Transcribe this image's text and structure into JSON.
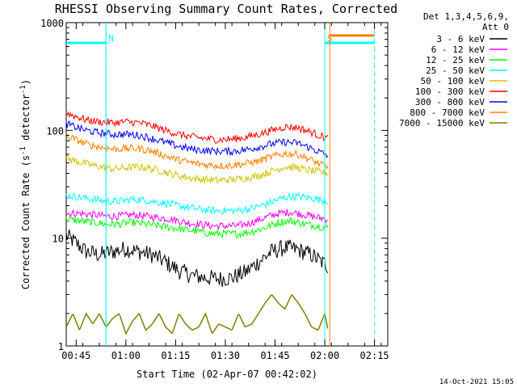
{
  "chart_data": {
    "type": "line",
    "title": "RHESSI Observing Summary Count Rates, Corrected",
    "xlabel": "Start Time (02-Apr-07 00:42:02)",
    "ylabel": "Corrected Count Rate (s-1 detector-1)",
    "ylabel_parts": {
      "main": "Corrected Count Rate (s",
      "sup1": "-1",
      "mid": " detector",
      "sup2": "-1",
      "end": ")"
    },
    "y_scale": "log",
    "ylim": [
      1,
      1000
    ],
    "xlim_minutes": [
      0,
      97
    ],
    "x_ticks": [
      {
        "label": "00:45",
        "minute": 3
      },
      {
        "label": "01:00",
        "minute": 18
      },
      {
        "label": "01:15",
        "minute": 33
      },
      {
        "label": "01:30",
        "minute": 48
      },
      {
        "label": "01:45",
        "minute": 63
      },
      {
        "label": "02:00",
        "minute": 78
      },
      {
        "label": "02:15",
        "minute": 93
      }
    ],
    "y_ticks": [
      {
        "label": "1",
        "value": 1
      },
      {
        "label": "10",
        "value": 10
      },
      {
        "label": "100",
        "value": 100
      },
      {
        "label": "1000",
        "value": 1000
      }
    ],
    "legend_header": [
      "Det 1,3,4,5,6,9,",
      "Att 0"
    ],
    "series": [
      {
        "name": "3 - 6 keV",
        "color": "#000000",
        "x": [
          0,
          3,
          6,
          10,
          14,
          18,
          22,
          26,
          30,
          34,
          38,
          42,
          46,
          50,
          54,
          58,
          62,
          66,
          70,
          74,
          77,
          79
        ],
        "values": [
          10.5,
          9.0,
          7.5,
          7.0,
          7.5,
          8.0,
          7.5,
          7.0,
          6.0,
          5.0,
          4.5,
          4.3,
          4.2,
          4.3,
          4.8,
          6.0,
          7.5,
          8.2,
          7.8,
          7.0,
          6.0,
          5.5
        ]
      },
      {
        "name": "6 - 12 keV",
        "color": "#ff00ff",
        "x": [
          0,
          4,
          8,
          12,
          16,
          20,
          24,
          28,
          32,
          36,
          40,
          44,
          48,
          52,
          56,
          60,
          64,
          68,
          72,
          76,
          79
        ],
        "values": [
          17,
          17,
          16.5,
          16,
          16,
          16.5,
          16,
          15.5,
          15,
          14,
          13.5,
          13,
          13,
          13,
          14,
          15.5,
          17,
          17.5,
          16.5,
          15.5,
          15
        ]
      },
      {
        "name": "12 - 25 keV",
        "color": "#00ff00",
        "x": [
          0,
          4,
          8,
          12,
          16,
          20,
          24,
          28,
          32,
          36,
          40,
          44,
          48,
          52,
          56,
          60,
          64,
          68,
          72,
          76,
          79
        ],
        "values": [
          15,
          14.5,
          14,
          13.5,
          13.5,
          14,
          13.5,
          13,
          12.5,
          12,
          11.5,
          11,
          11,
          11,
          11.5,
          12.5,
          14,
          14.5,
          13.5,
          13,
          12.5
        ]
      },
      {
        "name": "25 - 50 keV",
        "color": "#00ffff",
        "x": [
          0,
          4,
          8,
          12,
          16,
          20,
          24,
          28,
          32,
          36,
          40,
          44,
          48,
          52,
          56,
          60,
          64,
          68,
          72,
          76,
          79
        ],
        "values": [
          25,
          24,
          23,
          22,
          22,
          23,
          22.5,
          21.5,
          20.5,
          19.5,
          18.5,
          18,
          18,
          18,
          19,
          20.5,
          23,
          24.5,
          24,
          23,
          22
        ]
      },
      {
        "name": "50 - 100 keV",
        "color": "#d0c000",
        "x": [
          0,
          3,
          6,
          10,
          14,
          18,
          22,
          26,
          30,
          34,
          38,
          42,
          46,
          50,
          54,
          58,
          62,
          66,
          70,
          74,
          77,
          79
        ],
        "values": [
          55,
          52,
          49,
          46,
          44,
          45,
          46,
          44,
          41,
          38,
          36,
          35,
          34.5,
          35,
          36,
          38,
          42,
          46,
          45,
          42,
          41,
          40
        ]
      },
      {
        "name": "100 - 300 keV",
        "color": "#ff0000",
        "x": [
          0,
          3,
          6,
          10,
          14,
          18,
          22,
          26,
          30,
          34,
          38,
          42,
          46,
          50,
          54,
          58,
          62,
          66,
          70,
          74,
          77,
          79
        ],
        "values": [
          145,
          135,
          125,
          120,
          118,
          120,
          118,
          110,
          100,
          92,
          87,
          84,
          82,
          83,
          86,
          92,
          100,
          108,
          106,
          96,
          88,
          85
        ]
      },
      {
        "name": "300 - 800 keV",
        "color": "#0000ff",
        "x": [
          0,
          3,
          6,
          10,
          14,
          18,
          22,
          26,
          30,
          34,
          38,
          42,
          46,
          50,
          54,
          58,
          62,
          66,
          70,
          74,
          77,
          79
        ],
        "values": [
          115,
          107,
          100,
          95,
          92,
          92,
          90,
          84,
          77,
          71,
          67,
          65,
          64,
          64,
          66,
          70,
          75,
          78,
          76,
          68,
          62,
          58
        ]
      },
      {
        "name": "800 - 7000 keV",
        "color": "#ff8000",
        "x": [
          0,
          3,
          6,
          10,
          14,
          18,
          22,
          26,
          30,
          34,
          38,
          42,
          46,
          50,
          54,
          58,
          62,
          66,
          70,
          74,
          77,
          79
        ],
        "values": [
          88,
          82,
          75,
          70,
          67,
          68,
          68,
          64,
          58,
          53,
          50,
          48,
          47,
          47.5,
          49,
          52,
          57,
          61,
          60,
          53,
          48,
          45
        ]
      },
      {
        "name": "7000 - 15000 keV",
        "color": "#808000",
        "x": [
          0,
          2,
          4,
          6,
          8,
          10,
          12,
          14,
          16,
          18,
          20,
          22,
          24,
          26,
          28,
          30,
          32,
          34,
          36,
          38,
          40,
          42,
          44,
          46,
          48,
          50,
          52,
          54,
          56,
          58,
          60,
          62,
          64,
          66,
          68,
          70,
          72,
          74,
          76,
          78,
          79
        ],
        "values": [
          1.5,
          2,
          1.4,
          2,
          1.6,
          2,
          1.5,
          1.8,
          2,
          1.3,
          1.7,
          2,
          1.4,
          1.6,
          2,
          1.5,
          1.3,
          2,
          1.6,
          1.4,
          1.5,
          2,
          1.3,
          1.6,
          1.5,
          1.4,
          2,
          1.5,
          1.6,
          2,
          2.5,
          3,
          2.5,
          2.2,
          3,
          2.5,
          2,
          1.5,
          1.4,
          2,
          1.4
        ]
      }
    ],
    "annotations": [
      {
        "label": "N",
        "color": "#00ffff",
        "x_start": 0,
        "x_end": 12,
        "y": 650,
        "boundary_x": 12
      },
      {
        "label": "S",
        "color": "#00ffff",
        "x_start": 78,
        "x_end": 93,
        "y": 650,
        "boundary_x": 78
      },
      {
        "label": "",
        "color": "#ff8000",
        "x_start": 79.5,
        "x_end": 93,
        "y": 760,
        "boundary_x": 79.5
      }
    ],
    "dashed_lines_x": [
      12,
      93
    ],
    "footer": "14-Oct-2021 15:05"
  }
}
